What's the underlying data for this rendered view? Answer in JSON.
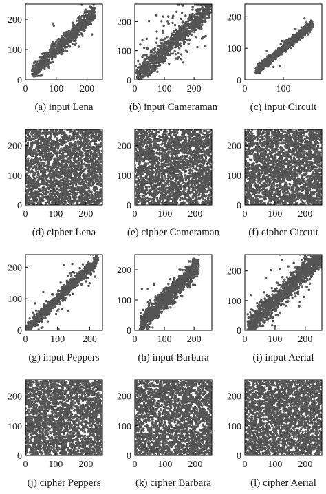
{
  "colors": {
    "points": "#555555",
    "axes": "#000000",
    "background": "#ffffff"
  },
  "chart_data": [
    {
      "type": "scatter",
      "caption": "(a) input Lena",
      "kind": "linear",
      "distribution": "correlated-diagonal",
      "xlim": [
        0,
        250
      ],
      "ylim": [
        0,
        250
      ],
      "xticks": [
        0,
        100,
        200
      ],
      "yticks": [
        0,
        100,
        200
      ],
      "x_range": [
        25,
        225
      ],
      "spread": 13,
      "outlier_fraction": 0.03,
      "point_count": 900,
      "grid": false
    },
    {
      "type": "scatter",
      "caption": "(b) input Cameraman",
      "kind": "linear",
      "distribution": "correlated-diagonal",
      "xlim": [
        0,
        260
      ],
      "ylim": [
        0,
        260
      ],
      "xticks": [
        0,
        100,
        200
      ],
      "yticks": [
        0,
        100,
        200
      ],
      "x_range": [
        5,
        255
      ],
      "spread": 18,
      "outlier_fraction": 0.14,
      "point_count": 1000,
      "grid": false
    },
    {
      "type": "scatter",
      "caption": "(c) input Circuit",
      "kind": "linear",
      "distribution": "correlated-diagonal",
      "xlim": [
        0,
        200
      ],
      "ylim": [
        0,
        240
      ],
      "xticks": [
        0,
        100
      ],
      "yticks": [
        0,
        100,
        200
      ],
      "x_range": [
        30,
        175
      ],
      "spread": 7,
      "outlier_fraction": 0.02,
      "point_count": 900,
      "grid": false
    },
    {
      "type": "scatter",
      "caption": "(d) cipher Lena",
      "kind": "uniform",
      "distribution": "uniform",
      "xlim": [
        0,
        255
      ],
      "ylim": [
        0,
        255
      ],
      "xticks": [
        0,
        100,
        200
      ],
      "yticks": [
        0,
        100,
        200
      ],
      "point_count": 2400,
      "grid": false
    },
    {
      "type": "scatter",
      "caption": "(e) cipher Cameraman",
      "kind": "uniform",
      "distribution": "uniform",
      "xlim": [
        0,
        255
      ],
      "ylim": [
        0,
        255
      ],
      "xticks": [
        0,
        100,
        200
      ],
      "yticks": [
        0,
        100,
        200
      ],
      "point_count": 2400,
      "grid": false
    },
    {
      "type": "scatter",
      "caption": "(f) cipher Circuit",
      "kind": "uniform",
      "distribution": "uniform",
      "xlim": [
        0,
        255
      ],
      "ylim": [
        0,
        255
      ],
      "xticks": [
        0,
        100,
        200
      ],
      "yticks": [
        0,
        100,
        200
      ],
      "point_count": 2400,
      "grid": false
    },
    {
      "type": "scatter",
      "caption": "(g) input Peppers",
      "kind": "linear",
      "distribution": "correlated-diagonal",
      "xlim": [
        0,
        240
      ],
      "ylim": [
        0,
        240
      ],
      "xticks": [
        0,
        100,
        200
      ],
      "yticks": [
        0,
        100,
        200
      ],
      "x_range": [
        5,
        225
      ],
      "spread": 9,
      "outlier_fraction": 0.06,
      "point_count": 1000,
      "grid": false
    },
    {
      "type": "scatter",
      "caption": "(h) input Barbara",
      "kind": "linear",
      "distribution": "correlated-diagonal",
      "xlim": [
        0,
        260
      ],
      "ylim": [
        0,
        250
      ],
      "xticks": [
        0,
        100,
        200
      ],
      "yticks": [
        0,
        100,
        200
      ],
      "x_range": [
        20,
        215
      ],
      "spread": 17,
      "outlier_fraction": 0.02,
      "point_count": 1100,
      "grid": false
    },
    {
      "type": "scatter",
      "caption": "(i) input Aerial",
      "kind": "linear",
      "distribution": "correlated-diagonal",
      "xlim": [
        0,
        255
      ],
      "ylim": [
        0,
        255
      ],
      "xticks": [
        0,
        100,
        200
      ],
      "yticks": [
        0,
        100,
        200
      ],
      "x_range": [
        10,
        255
      ],
      "spread": 20,
      "outlier_fraction": 0.03,
      "point_count": 1300,
      "grid": false
    },
    {
      "type": "scatter",
      "caption": "(j) cipher Peppers",
      "kind": "uniform",
      "distribution": "uniform",
      "xlim": [
        0,
        255
      ],
      "ylim": [
        0,
        255
      ],
      "xticks": [
        0,
        100,
        200
      ],
      "yticks": [
        0,
        100,
        200
      ],
      "point_count": 2400,
      "grid": false
    },
    {
      "type": "scatter",
      "caption": "(k) cipher Barbara",
      "kind": "uniform",
      "distribution": "uniform",
      "xlim": [
        0,
        255
      ],
      "ylim": [
        0,
        255
      ],
      "xticks": [
        0,
        100,
        200
      ],
      "yticks": [
        0,
        100,
        200
      ],
      "point_count": 2400,
      "grid": false
    },
    {
      "type": "scatter",
      "caption": "(l) cipher Aerial",
      "kind": "uniform",
      "distribution": "uniform",
      "xlim": [
        0,
        255
      ],
      "ylim": [
        0,
        255
      ],
      "xticks": [
        0,
        100,
        200
      ],
      "yticks": [
        0,
        100,
        200
      ],
      "point_count": 2400,
      "grid": false
    }
  ]
}
